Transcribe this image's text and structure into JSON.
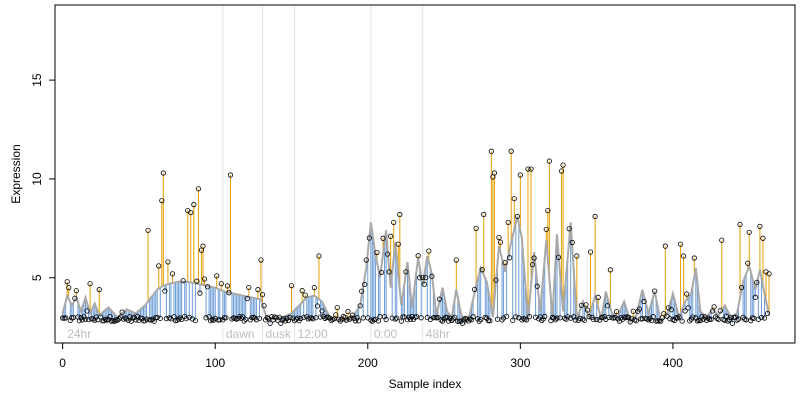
{
  "chart_data": {
    "type": "scatter",
    "title": "",
    "xlabel": "Sample index",
    "ylabel": "Expression",
    "xlim": [
      -5,
      480
    ],
    "ylim": [
      1.7,
      18.8
    ],
    "xticks": [
      0,
      100,
      200,
      300,
      400
    ],
    "yticks": [
      5,
      10,
      15
    ],
    "grid": false,
    "colors": {
      "trend": "#a9a9a9",
      "residual_positive": "#e69f00",
      "residual_negative": "#6a9bd6",
      "points": "#000000",
      "phase_lines": "#e5e5e5",
      "phase_labels": "#bdbdbd"
    },
    "phase_lines": [
      105,
      131,
      152,
      202,
      236
    ],
    "phase_labels": [
      {
        "x": 3,
        "text": "24hr"
      },
      {
        "x": 107,
        "text": "dawn"
      },
      {
        "x": 133,
        "text": "dusk"
      },
      {
        "x": 154,
        "text": "12:00"
      },
      {
        "x": 204,
        "text": "0:00"
      },
      {
        "x": 238,
        "text": "48hr"
      }
    ],
    "trend_knots": [
      [
        0,
        3.2
      ],
      [
        3,
        4.1
      ],
      [
        6,
        3.6
      ],
      [
        9,
        4.0
      ],
      [
        12,
        3.3
      ],
      [
        15,
        4.0
      ],
      [
        18,
        3.2
      ],
      [
        21,
        3.7
      ],
      [
        24,
        3.1
      ],
      [
        30,
        3.5
      ],
      [
        36,
        3.0
      ],
      [
        42,
        3.4
      ],
      [
        48,
        3.2
      ],
      [
        54,
        3.6
      ],
      [
        58,
        4.0
      ],
      [
        62,
        4.4
      ],
      [
        66,
        4.6
      ],
      [
        70,
        4.7
      ],
      [
        76,
        4.8
      ],
      [
        82,
        4.8
      ],
      [
        88,
        4.7
      ],
      [
        94,
        4.6
      ],
      [
        100,
        4.5
      ],
      [
        106,
        4.3
      ],
      [
        112,
        4.2
      ],
      [
        118,
        4.1
      ],
      [
        124,
        4.0
      ],
      [
        130,
        3.9
      ],
      [
        134,
        2.9
      ],
      [
        138,
        3.0
      ],
      [
        144,
        3.0
      ],
      [
        150,
        3.2
      ],
      [
        155,
        3.6
      ],
      [
        160,
        4.0
      ],
      [
        165,
        4.1
      ],
      [
        170,
        3.8
      ],
      [
        175,
        3.0
      ],
      [
        180,
        2.9
      ],
      [
        185,
        2.8
      ],
      [
        190,
        3.0
      ],
      [
        195,
        3.6
      ],
      [
        199,
        5.5
      ],
      [
        202,
        7.8
      ],
      [
        205,
        6.2
      ],
      [
        208,
        5.0
      ],
      [
        212,
        7.4
      ],
      [
        215,
        4.5
      ],
      [
        218,
        6.8
      ],
      [
        222,
        3.6
      ],
      [
        226,
        5.8
      ],
      [
        229,
        3.5
      ],
      [
        233,
        6.0
      ],
      [
        236,
        4.6
      ],
      [
        239,
        6.1
      ],
      [
        242,
        5.2
      ],
      [
        245,
        3.1
      ],
      [
        249,
        4.5
      ],
      [
        252,
        3.3
      ],
      [
        255,
        3.0
      ],
      [
        258,
        4.4
      ],
      [
        261,
        3.2
      ],
      [
        264,
        2.7
      ],
      [
        267,
        3.2
      ],
      [
        271,
        4.6
      ],
      [
        274,
        5.5
      ],
      [
        278,
        4.8
      ],
      [
        282,
        3.0
      ],
      [
        286,
        6.6
      ],
      [
        290,
        5.3
      ],
      [
        294,
        6.8
      ],
      [
        298,
        8.1
      ],
      [
        301,
        7.0
      ],
      [
        305,
        2.9
      ],
      [
        309,
        6.3
      ],
      [
        313,
        3.3
      ],
      [
        317,
        6.9
      ],
      [
        321,
        3.0
      ],
      [
        324,
        7.2
      ],
      [
        328,
        3.3
      ],
      [
        333,
        7.8
      ],
      [
        337,
        2.9
      ],
      [
        341,
        3.8
      ],
      [
        345,
        3.0
      ],
      [
        349,
        4.1
      ],
      [
        353,
        2.9
      ],
      [
        356,
        4.3
      ],
      [
        360,
        3.2
      ],
      [
        364,
        3.1
      ],
      [
        368,
        3.8
      ],
      [
        372,
        2.8
      ],
      [
        376,
        3.1
      ],
      [
        380,
        4.4
      ],
      [
        384,
        3.2
      ],
      [
        388,
        4.3
      ],
      [
        392,
        2.8
      ],
      [
        396,
        3.1
      ],
      [
        400,
        4.2
      ],
      [
        404,
        3.0
      ],
      [
        408,
        3.8
      ],
      [
        412,
        4.2
      ],
      [
        415,
        5.5
      ],
      [
        418,
        3.3
      ],
      [
        422,
        3.0
      ],
      [
        426,
        3.4
      ],
      [
        430,
        3.1
      ],
      [
        434,
        3.6
      ],
      [
        438,
        3.0
      ],
      [
        442,
        3.2
      ],
      [
        446,
        4.8
      ],
      [
        450,
        5.6
      ],
      [
        454,
        4.4
      ],
      [
        457,
        5.4
      ],
      [
        460,
        4.2
      ],
      [
        463,
        3.1
      ]
    ],
    "spikes": [
      [
        3,
        4.8
      ],
      [
        4,
        4.5
      ],
      [
        18,
        4.7
      ],
      [
        24,
        4.4
      ],
      [
        56,
        7.4
      ],
      [
        63,
        5.6
      ],
      [
        65,
        8.9
      ],
      [
        66,
        10.3
      ],
      [
        69,
        5.8
      ],
      [
        72,
        5.2
      ],
      [
        82,
        8.4
      ],
      [
        84,
        8.3
      ],
      [
        86,
        8.7
      ],
      [
        89,
        9.5
      ],
      [
        91,
        6.4
      ],
      [
        92,
        6.6
      ],
      [
        101,
        5.1
      ],
      [
        104,
        4.7
      ],
      [
        110,
        10.2
      ],
      [
        128,
        4.4
      ],
      [
        130,
        5.9
      ],
      [
        150,
        4.6
      ],
      [
        165,
        4.5
      ],
      [
        168,
        6.1
      ],
      [
        199,
        5.9
      ],
      [
        210,
        7.0
      ],
      [
        213,
        6.2
      ],
      [
        215,
        7.1
      ],
      [
        217,
        7.8
      ],
      [
        220,
        6.7
      ],
      [
        221,
        8.2
      ],
      [
        234,
        5.0
      ],
      [
        258,
        5.9
      ],
      [
        271,
        7.5
      ],
      [
        276,
        8.2
      ],
      [
        281,
        11.4
      ],
      [
        282,
        10.1
      ],
      [
        283,
        10.3
      ],
      [
        287,
        6.8
      ],
      [
        292,
        7.8
      ],
      [
        294,
        11.4
      ],
      [
        296,
        9.0
      ],
      [
        298,
        8.1
      ],
      [
        300,
        10.2
      ],
      [
        305,
        10.5
      ],
      [
        307,
        10.5
      ],
      [
        309,
        6.0
      ],
      [
        318,
        8.4
      ],
      [
        319,
        10.9
      ],
      [
        327,
        10.4
      ],
      [
        328,
        10.7
      ],
      [
        337,
        6.1
      ],
      [
        346,
        6.3
      ],
      [
        349,
        8.1
      ],
      [
        359,
        5.4
      ],
      [
        395,
        6.6
      ],
      [
        405,
        6.7
      ],
      [
        407,
        6.1
      ],
      [
        414,
        6.0
      ],
      [
        432,
        6.9
      ],
      [
        444,
        7.7
      ],
      [
        450,
        7.3
      ],
      [
        457,
        7.6
      ],
      [
        459,
        7.0
      ],
      [
        461,
        5.3
      ],
      [
        463,
        5.2
      ]
    ]
  }
}
